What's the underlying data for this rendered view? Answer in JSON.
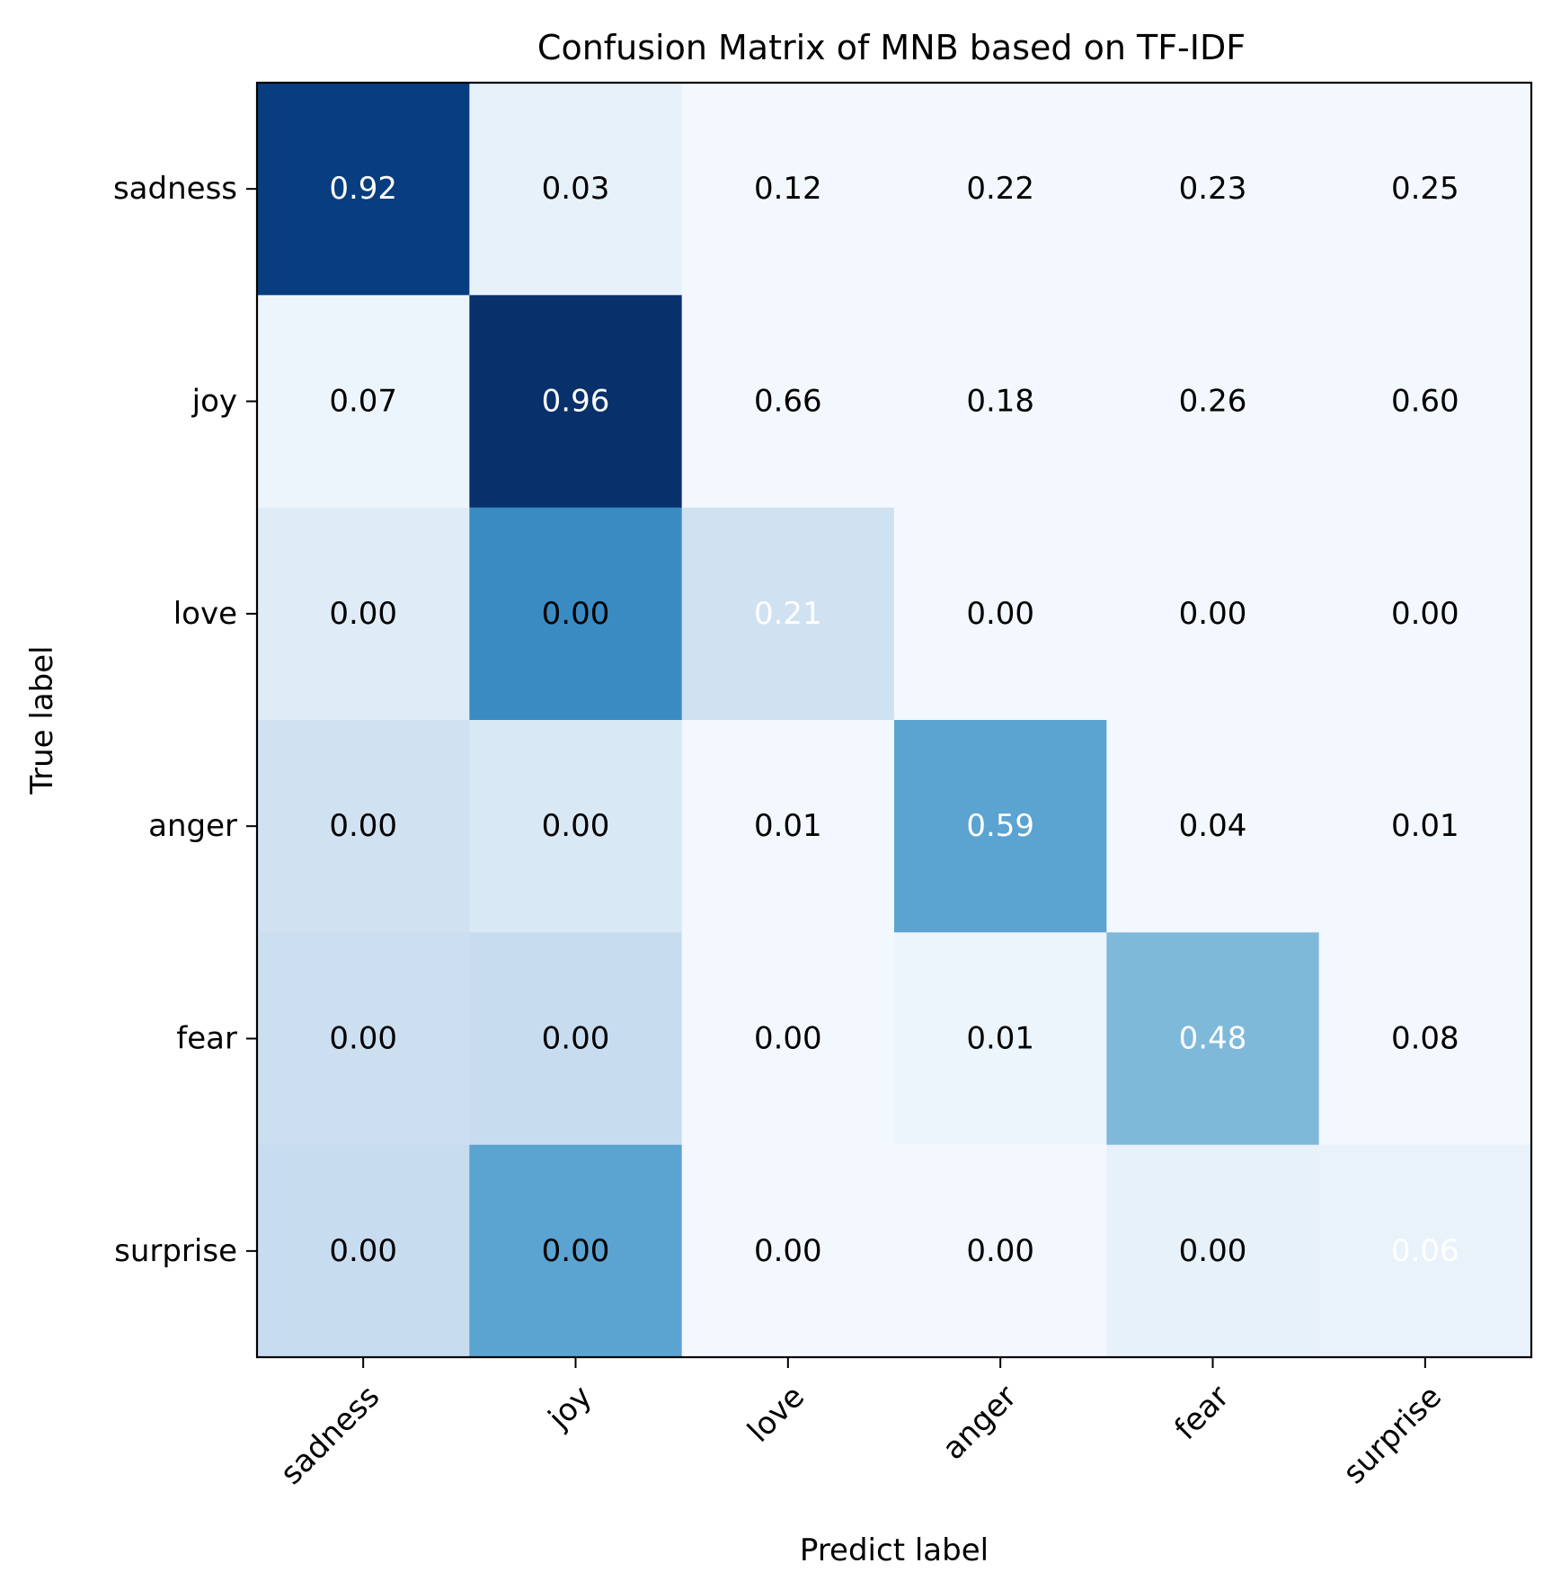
{
  "chart_data": {
    "type": "heatmap",
    "title": "Confusion Matrix of MNB based on TF-IDF",
    "xlabel": "Predict label",
    "ylabel": "True label",
    "x_categories": [
      "sadness",
      "joy",
      "love",
      "anger",
      "fear",
      "surprise"
    ],
    "y_categories": [
      "sadness",
      "joy",
      "love",
      "anger",
      "fear",
      "surprise"
    ],
    "cell_labels": [
      [
        "0.92",
        "0.03",
        "0.12",
        "0.22",
        "0.23",
        "0.25"
      ],
      [
        "0.07",
        "0.96",
        "0.66",
        "0.18",
        "0.26",
        "0.60"
      ],
      [
        "0.00",
        "0.00",
        "0.21",
        "0.00",
        "0.00",
        "0.00"
      ],
      [
        "0.00",
        "0.00",
        "0.01",
        "0.59",
        "0.04",
        "0.01"
      ],
      [
        "0.00",
        "0.00",
        "0.00",
        "0.01",
        "0.48",
        "0.08"
      ],
      [
        "0.00",
        "0.00",
        "0.00",
        "0.00",
        "0.00",
        "0.06"
      ]
    ],
    "color_intensity": [
      [
        0.95,
        0.08,
        0.02,
        0.02,
        0.02,
        0.02
      ],
      [
        0.05,
        1.0,
        0.02,
        0.02,
        0.02,
        0.02
      ],
      [
        0.12,
        0.65,
        0.2,
        0.02,
        0.02,
        0.02
      ],
      [
        0.2,
        0.15,
        0.02,
        0.55,
        0.02,
        0.02
      ],
      [
        0.22,
        0.24,
        0.02,
        0.05,
        0.45,
        0.02
      ],
      [
        0.24,
        0.55,
        0.02,
        0.02,
        0.08,
        0.07
      ]
    ],
    "colormap": "Blues",
    "grid": false,
    "text_color_dark": "#000000",
    "text_color_light": "#ffffff"
  }
}
